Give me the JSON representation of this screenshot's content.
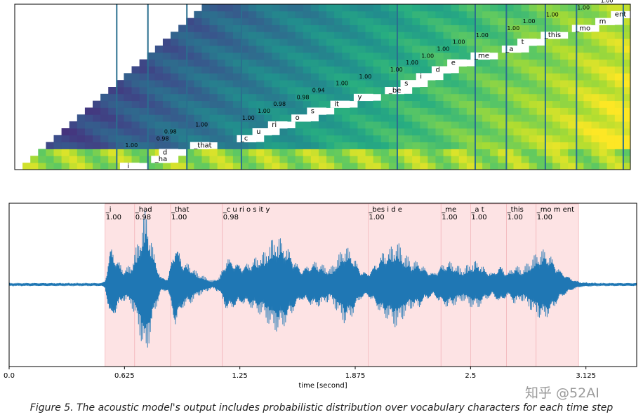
{
  "figure": {
    "caption": "Figure 5. The acoustic model's output includes probabilistic distribution over vocabulary characters for each time step",
    "watermark": "知乎 @52AI"
  },
  "chart_data": [
    {
      "type": "heatmap",
      "title": "",
      "description_colormap": "viridis",
      "rows": 24,
      "time_steps": 79,
      "tokens": [
        {
          "label": "_i",
          "prob": "1.00",
          "step": 14,
          "row": 0
        },
        {
          "label": "_ha",
          "prob": "0.98",
          "step": 18,
          "row": 1
        },
        {
          "label": "d",
          "prob": "0.98",
          "step": 19,
          "row": 2
        },
        {
          "label": "_that",
          "prob": "1.00",
          "step": 23,
          "row": 3
        },
        {
          "label": "_c",
          "prob": "1.00",
          "step": 29,
          "row": 4
        },
        {
          "label": "u",
          "prob": "1.00",
          "step": 31,
          "row": 5
        },
        {
          "label": "ri",
          "prob": "0.98",
          "step": 33,
          "row": 6
        },
        {
          "label": "o",
          "prob": "0.98",
          "step": 36,
          "row": 7
        },
        {
          "label": "s",
          "prob": "0.94",
          "step": 38,
          "row": 8
        },
        {
          "label": "it",
          "prob": "1.00",
          "step": 41,
          "row": 9
        },
        {
          "label": "y",
          "prob": "1.00",
          "step": 44,
          "row": 10
        },
        {
          "label": "_be",
          "prob": "1.00",
          "step": 48,
          "row": 11
        },
        {
          "label": "s",
          "prob": "1.00",
          "step": 50,
          "row": 12
        },
        {
          "label": "i",
          "prob": "1.00",
          "step": 52,
          "row": 13
        },
        {
          "label": "d",
          "prob": "1.00",
          "step": 54,
          "row": 14
        },
        {
          "label": "e",
          "prob": "1.00",
          "step": 56,
          "row": 15
        },
        {
          "label": "_me",
          "prob": "1.00",
          "step": 59,
          "row": 16
        },
        {
          "label": "_a",
          "prob": "1.00",
          "step": 63,
          "row": 17
        },
        {
          "label": "t",
          "prob": "1.00",
          "step": 65,
          "row": 18
        },
        {
          "label": "_this",
          "prob": "1.00",
          "step": 68,
          "row": 19
        },
        {
          "label": "_mo",
          "prob": "1.00",
          "step": 72,
          "row": 20
        },
        {
          "label": "m",
          "prob": "1.00",
          "step": 75,
          "row": 21
        },
        {
          "label": "ent",
          "prob": "1.00",
          "step": 77,
          "row": 22
        }
      ],
      "word_boundaries_steps": [
        13,
        17,
        22,
        29,
        49,
        59,
        63,
        68,
        72,
        78
      ]
    },
    {
      "type": "line",
      "title": "",
      "xlabel": "time [second]",
      "ylabel": "",
      "xlim": [
        0,
        3.4
      ],
      "ylim": [
        -1,
        1
      ],
      "xticks": [
        0.0,
        0.625,
        1.25,
        1.875,
        2.5,
        3.125
      ],
      "xtick_labels": [
        "0.0",
        "0.625",
        "1.25",
        "1.875",
        "2.5",
        "3.125"
      ],
      "segments": [
        {
          "label": "_i",
          "prob": "1.00",
          "start": 0.52,
          "end": 0.68
        },
        {
          "label": "_had",
          "prob": "0.98",
          "start": 0.68,
          "end": 0.875
        },
        {
          "label": "_that",
          "prob": "1.00",
          "start": 0.875,
          "end": 1.155
        },
        {
          "label": "_c  u   ri     o      s        it    y",
          "prob": "0.98",
          "start": 1.155,
          "end": 1.945
        },
        {
          "label": "_bes    i    d    e",
          "prob": "1.00",
          "start": 1.945,
          "end": 2.34
        },
        {
          "label": "_me",
          "prob": "1.00",
          "start": 2.34,
          "end": 2.5
        },
        {
          "label": "_a   t",
          "prob": "1.00",
          "start": 2.5,
          "end": 2.695
        },
        {
          "label": "_this",
          "prob": "1.00",
          "start": 2.695,
          "end": 2.855
        },
        {
          "label": "_mo    m     ent",
          "prob": "1.00",
          "start": 2.855,
          "end": 3.085
        }
      ],
      "colors": {
        "waveform": "#1f77b4",
        "segment_fill": "#fde3e4",
        "segment_edge": "#f2b7bb"
      },
      "envelope": [
        [
          0.0,
          0.02
        ],
        [
          0.5,
          0.02
        ],
        [
          0.52,
          0.05
        ],
        [
          0.55,
          0.5
        ],
        [
          0.58,
          0.35
        ],
        [
          0.62,
          0.2
        ],
        [
          0.66,
          0.25
        ],
        [
          0.7,
          0.55
        ],
        [
          0.74,
          0.95
        ],
        [
          0.78,
          0.45
        ],
        [
          0.82,
          0.1
        ],
        [
          0.86,
          0.08
        ],
        [
          0.9,
          0.55
        ],
        [
          0.94,
          0.3
        ],
        [
          0.98,
          0.25
        ],
        [
          1.02,
          0.15
        ],
        [
          1.06,
          0.1
        ],
        [
          1.1,
          0.05
        ],
        [
          1.14,
          0.1
        ],
        [
          1.18,
          0.35
        ],
        [
          1.22,
          0.3
        ],
        [
          1.26,
          0.25
        ],
        [
          1.3,
          0.28
        ],
        [
          1.34,
          0.35
        ],
        [
          1.38,
          0.4
        ],
        [
          1.42,
          0.55
        ],
        [
          1.46,
          0.6
        ],
        [
          1.5,
          0.5
        ],
        [
          1.54,
          0.35
        ],
        [
          1.58,
          0.2
        ],
        [
          1.62,
          0.25
        ],
        [
          1.66,
          0.3
        ],
        [
          1.7,
          0.25
        ],
        [
          1.74,
          0.2
        ],
        [
          1.78,
          0.35
        ],
        [
          1.82,
          0.5
        ],
        [
          1.86,
          0.4
        ],
        [
          1.9,
          0.2
        ],
        [
          1.94,
          0.15
        ],
        [
          1.98,
          0.25
        ],
        [
          2.02,
          0.4
        ],
        [
          2.06,
          0.45
        ],
        [
          2.1,
          0.55
        ],
        [
          2.14,
          0.4
        ],
        [
          2.18,
          0.3
        ],
        [
          2.22,
          0.3
        ],
        [
          2.26,
          0.2
        ],
        [
          2.3,
          0.15
        ],
        [
          2.34,
          0.25
        ],
        [
          2.38,
          0.3
        ],
        [
          2.42,
          0.25
        ],
        [
          2.46,
          0.2
        ],
        [
          2.5,
          0.28
        ],
        [
          2.54,
          0.3
        ],
        [
          2.58,
          0.2
        ],
        [
          2.62,
          0.15
        ],
        [
          2.66,
          0.25
        ],
        [
          2.7,
          0.15
        ],
        [
          2.74,
          0.25
        ],
        [
          2.78,
          0.2
        ],
        [
          2.82,
          0.3
        ],
        [
          2.86,
          0.4
        ],
        [
          2.9,
          0.45
        ],
        [
          2.94,
          0.35
        ],
        [
          2.98,
          0.2
        ],
        [
          3.02,
          0.12
        ],
        [
          3.06,
          0.06
        ],
        [
          3.1,
          0.03
        ],
        [
          3.2,
          0.02
        ],
        [
          3.4,
          0.02
        ]
      ]
    }
  ]
}
